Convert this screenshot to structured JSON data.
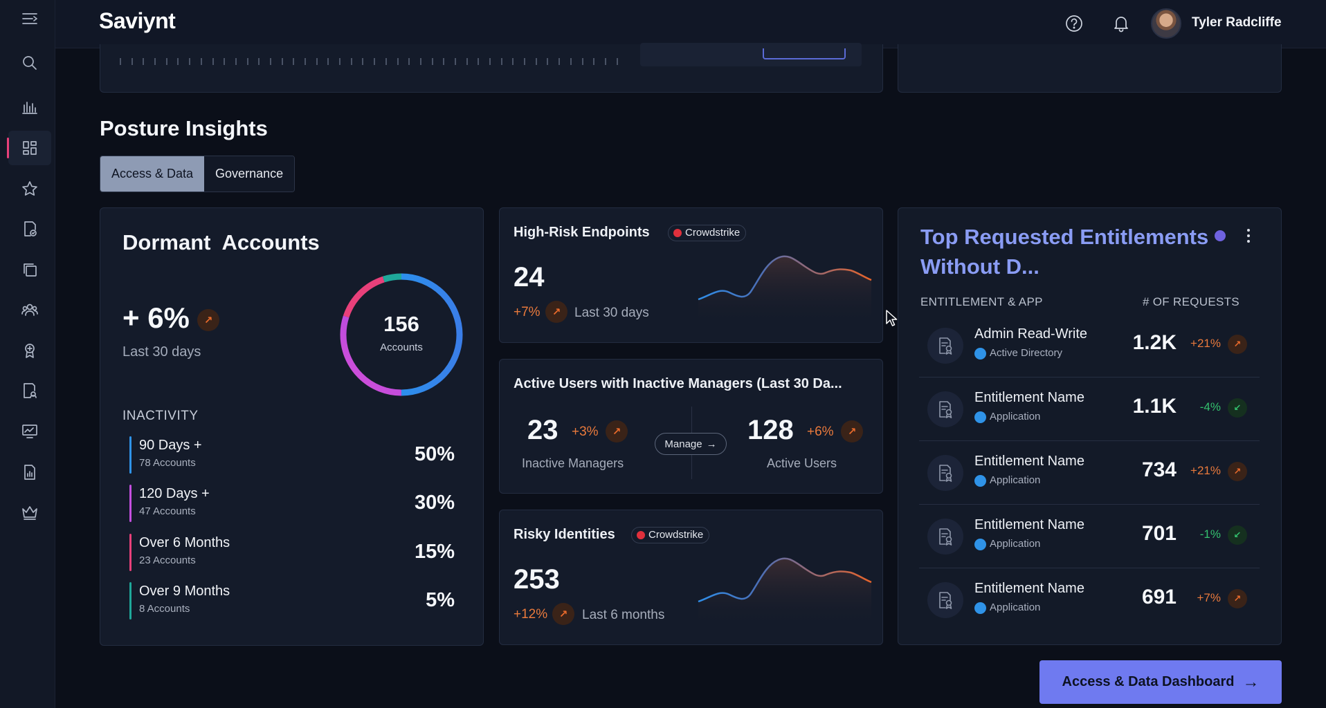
{
  "app": {
    "logo": "Saviynt"
  },
  "header": {
    "username": "Tyler Radcliffe"
  },
  "sidebar": {
    "items": [
      {
        "name": "menu-icon"
      },
      {
        "name": "search-icon"
      },
      {
        "name": "analytics-icon"
      },
      {
        "name": "dashboard-icon",
        "active": true
      },
      {
        "name": "star-icon"
      },
      {
        "name": "certification-icon"
      },
      {
        "name": "copy-icon"
      },
      {
        "name": "users-icon"
      },
      {
        "name": "badge-icon"
      },
      {
        "name": "report-icon"
      },
      {
        "name": "monitor-icon"
      },
      {
        "name": "chart-doc-icon"
      },
      {
        "name": "crown-icon"
      }
    ]
  },
  "section": {
    "title": "Posture Insights",
    "tabs": [
      {
        "label": "Access & Data",
        "active": true
      },
      {
        "label": "Governance",
        "active": false
      }
    ]
  },
  "dormant": {
    "title": "Dormant  Accounts",
    "change": "+ 6%",
    "period": "Last 30 days",
    "total": "156",
    "total_label": "Accounts",
    "inactivity_label": "INACTIVITY",
    "rows": [
      {
        "label": "90 Days +",
        "sub": "78 Accounts",
        "value": "50%",
        "color": "#2f93e8"
      },
      {
        "label": "120 Days +",
        "sub": "47 Accounts",
        "value": "30%",
        "color": "#c44fe0"
      },
      {
        "label": "Over 6 Months",
        "sub": "23 Accounts",
        "value": "15%",
        "color": "#e8407a"
      },
      {
        "label": "Over 9 Months",
        "sub": "8 Accounts",
        "value": "5%",
        "color": "#1fa89a"
      }
    ]
  },
  "high_risk": {
    "title": "High-Risk Endpoints",
    "badge": "Crowdstrike",
    "value": "24",
    "change": "+7%",
    "period": "Last 30 days"
  },
  "active_users": {
    "title": "Active Users with Inactive Managers (Last 30 Da...",
    "left_value": "23",
    "left_change": "+3%",
    "left_label": "Inactive Managers",
    "manage": "Manage",
    "right_value": "128",
    "right_change": "+6%",
    "right_label": "Active Users"
  },
  "risky": {
    "title": "Risky Identities",
    "badge": "Crowdstrike",
    "value": "253",
    "change": "+12%",
    "period": "Last 6 months"
  },
  "top_requested": {
    "title": "Top Requested Entitlements Without D...",
    "col_left": "ENTITLEMENT & APP",
    "col_right": "# OF REQUESTS",
    "rows": [
      {
        "name": "Admin Read-Write",
        "app": "Active Directory",
        "count": "1.2K",
        "change": "+21%",
        "dir": "up"
      },
      {
        "name": "Entitlement Name",
        "app": "Application",
        "count": "1.1K",
        "change": "-4%",
        "dir": "down"
      },
      {
        "name": "Entitlement Name",
        "app": "Application",
        "count": "734",
        "change": "+21%",
        "dir": "up"
      },
      {
        "name": "Entitlement Name",
        "app": "Application",
        "count": "701",
        "change": "-1%",
        "dir": "down"
      },
      {
        "name": "Entitlement Name",
        "app": "Application",
        "count": "691",
        "change": "+7%",
        "dir": "up"
      }
    ]
  },
  "cta": {
    "label": "Access & Data Dashboard"
  }
}
